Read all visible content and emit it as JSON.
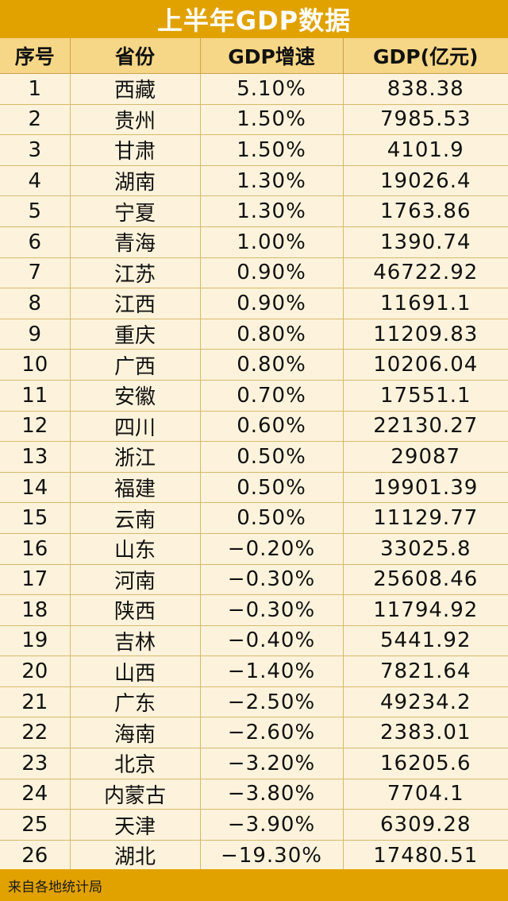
{
  "title": "上半年GDP数据",
  "headers": [
    "序号",
    "省份",
    "GDP增速",
    "GDP(亿元)"
  ],
  "rows": [
    [
      "1",
      "西藏",
      "5.10%",
      "838.38"
    ],
    [
      "2",
      "贵州",
      "1.50%",
      "7985.53"
    ],
    [
      "3",
      "甘肃",
      "1.50%",
      "4101.9"
    ],
    [
      "4",
      "湖南",
      "1.30%",
      "19026.4"
    ],
    [
      "5",
      "宁夏",
      "1.30%",
      "1763.86"
    ],
    [
      "6",
      "青海",
      "1.00%",
      "1390.74"
    ],
    [
      "7",
      "江苏",
      "0.90%",
      "46722.92"
    ],
    [
      "8",
      "江西",
      "0.90%",
      "11691.1"
    ],
    [
      "9",
      "重庆",
      "0.80%",
      "11209.83"
    ],
    [
      "10",
      "广西",
      "0.80%",
      "10206.04"
    ],
    [
      "11",
      "安徽",
      "0.70%",
      "17551.1"
    ],
    [
      "12",
      "四川",
      "0.60%",
      "22130.27"
    ],
    [
      "13",
      "浙江",
      "0.50%",
      "29087"
    ],
    [
      "14",
      "福建",
      "0.50%",
      "19901.39"
    ],
    [
      "15",
      "云南",
      "0.50%",
      "11129.77"
    ],
    [
      "16",
      "山东",
      "−0.20%",
      "33025.8"
    ],
    [
      "17",
      "河南",
      "−0.30%",
      "25608.46"
    ],
    [
      "18",
      "陕西",
      "−0.30%",
      "11794.92"
    ],
    [
      "19",
      "吉林",
      "−0.40%",
      "5441.92"
    ],
    [
      "20",
      "山西",
      "−1.40%",
      "7821.64"
    ],
    [
      "21",
      "广东",
      "−2.50%",
      "49234.2"
    ],
    [
      "22",
      "海南",
      "−2.60%",
      "2383.01"
    ],
    [
      "23",
      "北京",
      "−3.20%",
      "16205.6"
    ],
    [
      "24",
      "内蒙古",
      "−3.80%",
      "7704.1"
    ],
    [
      "25",
      "天津",
      "−3.90%",
      "6309.28"
    ],
    [
      "26",
      "湖北",
      "−19.30%",
      "17480.51"
    ]
  ],
  "footer": "来自各地统计局",
  "colors": {
    "accent": "#e1a200",
    "header_bg": "#f6d787",
    "body_bg": "#fdf3dc"
  }
}
